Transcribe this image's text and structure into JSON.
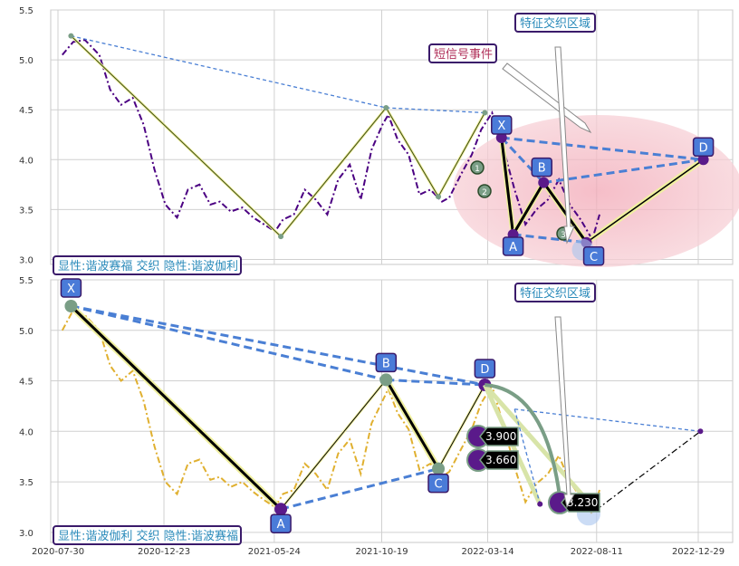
{
  "colors": {
    "panel_bg": "#ffffff",
    "grid": "#d0d0d0",
    "axis_frame": "#c8c8c8",
    "top_price": "#4b0082",
    "bottom_price": "#e0b030",
    "blue_dash": "#4a7fd4",
    "green_marker": "#7a9e86",
    "purple_marker": "#5a1a8a",
    "label_fill": "#4a7bd8",
    "label_border": "#3a1a6a",
    "zone_fill": "#f5c0c8",
    "annotation_text_blue": "#2a8aba",
    "annotation_text_red": "#b0305a"
  },
  "chart_data": [
    {
      "type": "line",
      "panel": "top",
      "ylim": [
        2.95,
        5.5
      ],
      "yticks": [
        "3.0",
        "3.5",
        "4.0",
        "4.5",
        "5.0",
        "5.5"
      ],
      "series": [
        {
          "style": "dash-dot",
          "x": [
            "2020-08-05",
            "2020-08-20",
            "2020-09-05",
            "2020-09-25",
            "2020-10-10",
            "2020-10-25",
            "2020-11-10",
            "2020-11-25",
            "2020-12-10",
            "2020-12-25",
            "2021-01-10",
            "2021-01-25",
            "2021-02-10",
            "2021-02-25",
            "2021-03-10",
            "2021-03-25",
            "2021-04-10",
            "2021-04-25",
            "2021-05-10",
            "2021-05-25",
            "2021-06-05",
            "2021-06-20",
            "2021-07-05",
            "2021-07-20",
            "2021-08-05",
            "2021-08-20",
            "2021-09-05",
            "2021-09-20",
            "2021-10-05",
            "2021-10-20",
            "2021-10-28",
            "2021-11-10",
            "2021-11-25",
            "2021-12-10",
            "2021-12-25",
            "2022-01-10",
            "2022-01-20",
            "2022-02-05",
            "2022-02-20",
            "2022-03-05",
            "2022-03-20",
            "2022-04-05",
            "2022-04-20",
            "2022-05-05",
            "2022-05-20",
            "2022-06-05",
            "2022-06-20",
            "2022-07-05",
            "2022-07-20",
            "2022-08-05",
            "2022-08-15"
          ],
          "values": [
            5.05,
            5.18,
            5.2,
            5.05,
            4.7,
            4.55,
            4.62,
            4.35,
            3.9,
            3.55,
            3.42,
            3.7,
            3.75,
            3.55,
            3.58,
            3.48,
            3.52,
            3.42,
            3.35,
            3.28,
            3.4,
            3.45,
            3.7,
            3.6,
            3.45,
            3.8,
            3.95,
            3.6,
            4.1,
            4.35,
            4.45,
            4.2,
            4.05,
            3.65,
            3.7,
            3.58,
            3.62,
            3.85,
            4.05,
            4.3,
            4.47,
            4.1,
            3.7,
            3.35,
            3.5,
            3.6,
            3.8,
            3.55,
            3.4,
            3.2,
            3.45
          ]
        }
      ],
      "pattern": {
        "points": [
          {
            "x": "2020-08-17",
            "y": 5.24
          },
          {
            "x": "2021-06-02",
            "y": 3.23
          },
          {
            "x": "2021-10-25",
            "y": 4.52
          },
          {
            "x": "2022-01-05",
            "y": 3.63
          },
          {
            "x": "2022-03-10",
            "y": 4.47
          }
        ]
      },
      "harmonic": {
        "points": [
          {
            "label": "X",
            "x": "2022-04-02",
            "y": 4.22
          },
          {
            "label": "A",
            "x": "2022-04-18",
            "y": 3.25
          },
          {
            "label": "B",
            "x": "2022-05-30",
            "y": 3.77
          },
          {
            "label": "C",
            "x": "2022-07-28",
            "y": 3.17
          },
          {
            "label": "D",
            "x": "2023-01-05",
            "y": 4.0
          }
        ]
      },
      "numbered_markers": [
        "1",
        "2",
        "3"
      ],
      "annotations": {
        "short_signal": "短信号事件",
        "feature_zone": "特征交织区域",
        "bottom_left": "显性:谐波赛福 交织 隐性:谐波伽利"
      }
    },
    {
      "type": "line",
      "panel": "bottom",
      "ylim": [
        2.9,
        5.5
      ],
      "yticks": [
        "3.0",
        "3.5",
        "4.0",
        "4.5",
        "5.0",
        "5.5"
      ],
      "xticks": [
        "2020-07-30",
        "2020-12-23",
        "2021-05-24",
        "2021-10-19",
        "2022-03-14",
        "2022-08-11",
        "2022-12-29"
      ],
      "series": [
        {
          "style": "dash-dot",
          "x": [
            "2020-08-05",
            "2020-08-20",
            "2020-09-05",
            "2020-09-25",
            "2020-10-10",
            "2020-10-25",
            "2020-11-10",
            "2020-11-25",
            "2020-12-10",
            "2020-12-25",
            "2021-01-10",
            "2021-01-25",
            "2021-02-10",
            "2021-02-25",
            "2021-03-10",
            "2021-03-25",
            "2021-04-10",
            "2021-04-25",
            "2021-05-10",
            "2021-05-25",
            "2021-06-05",
            "2021-06-20",
            "2021-07-05",
            "2021-07-20",
            "2021-08-05",
            "2021-08-20",
            "2021-09-05",
            "2021-09-20",
            "2021-10-05",
            "2021-10-20",
            "2021-10-28",
            "2021-11-10",
            "2021-11-25",
            "2021-12-10",
            "2021-12-25",
            "2022-01-10",
            "2022-01-20",
            "2022-02-05",
            "2022-02-20",
            "2022-03-05",
            "2022-03-20",
            "2022-04-05",
            "2022-04-20",
            "2022-05-05",
            "2022-05-20",
            "2022-06-05",
            "2022-06-20",
            "2022-07-05",
            "2022-07-20",
            "2022-08-05",
            "2022-08-15"
          ],
          "values": [
            5.0,
            5.2,
            5.15,
            5.0,
            4.65,
            4.5,
            4.6,
            4.3,
            3.85,
            3.5,
            3.38,
            3.68,
            3.72,
            3.52,
            3.55,
            3.45,
            3.5,
            3.4,
            3.32,
            3.25,
            3.38,
            3.42,
            3.68,
            3.58,
            3.42,
            3.78,
            3.92,
            3.58,
            4.08,
            4.3,
            4.42,
            4.18,
            4.02,
            3.62,
            3.68,
            3.55,
            3.6,
            3.82,
            4.02,
            4.28,
            4.45,
            4.05,
            3.65,
            3.3,
            3.48,
            3.58,
            3.76,
            3.5,
            3.35,
            3.18,
            3.42
          ]
        }
      ],
      "harmonic": {
        "points": [
          {
            "label": "X",
            "x": "2020-08-17",
            "y": 5.24
          },
          {
            "label": "A",
            "x": "2021-06-02",
            "y": 3.23
          },
          {
            "label": "B",
            "x": "2021-10-25",
            "y": 4.51
          },
          {
            "label": "C",
            "x": "2022-01-05",
            "y": 3.63
          },
          {
            "label": "D",
            "x": "2022-03-10",
            "y": 4.46
          }
        ]
      },
      "projection": {
        "x": [
          "2022-04-20",
          "2022-05-25",
          "2022-08-10",
          "2023-01-01"
        ],
        "y": [
          4.22,
          3.28,
          3.22,
          4.0
        ]
      },
      "levels": [
        {
          "label": "3.900",
          "y": 3.9
        },
        {
          "label": "3.660",
          "y": 3.66
        },
        {
          "label": "3.230",
          "y": 3.23
        }
      ],
      "annotations": {
        "feature_zone": "特征交织区域",
        "bottom_left": "显性:谐波伽利 交织 隐性:谐波赛福"
      }
    }
  ]
}
